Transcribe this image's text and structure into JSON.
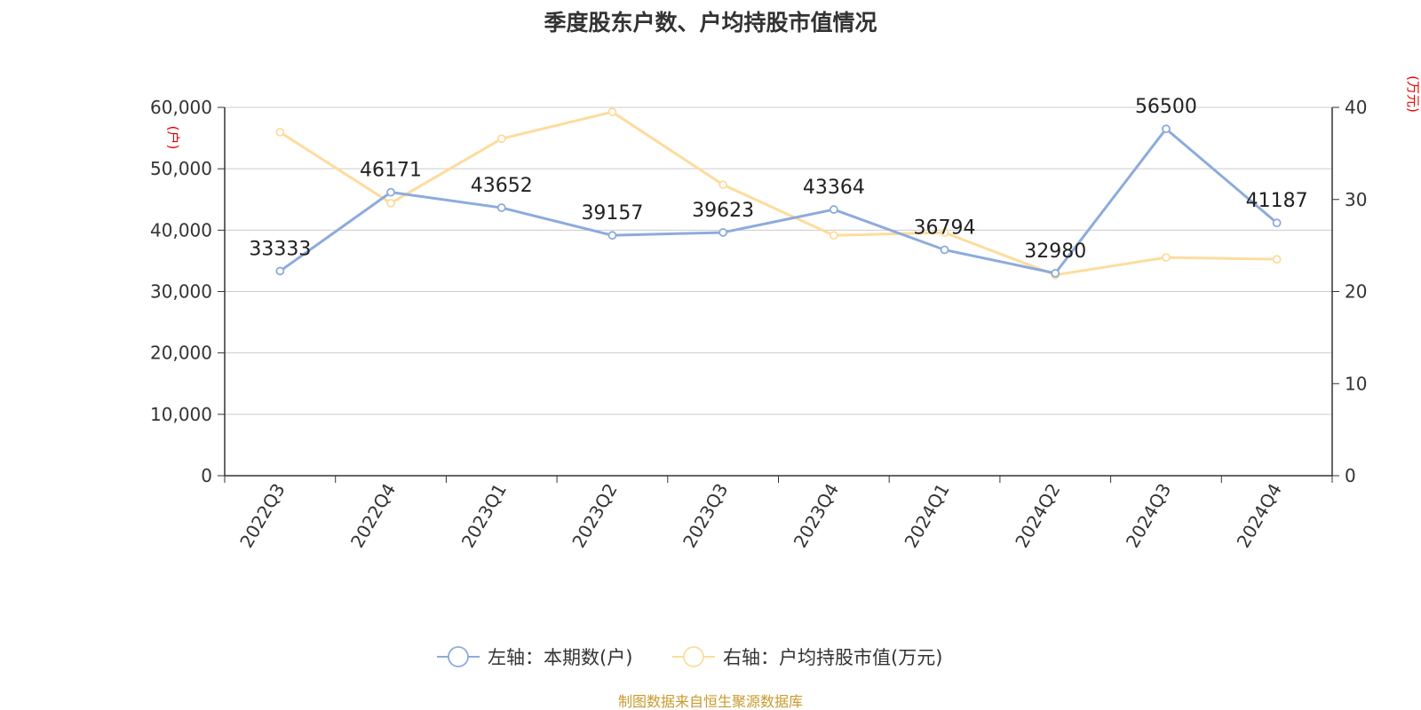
{
  "title": "季度股东户数、户均持股市值情况",
  "source": "制图数据来自恒生聚源数据库",
  "colors": {
    "left_series": "#8dabdc",
    "right_series": "#fddc9c",
    "grid": "#cccccc",
    "axis": "#333333",
    "unit": "#e60000",
    "source": "#c89a2c"
  },
  "chart_data": {
    "type": "line",
    "title": "季度股东户数、户均持股市值情况",
    "categories": [
      "2022Q3",
      "2022Q4",
      "2023Q1",
      "2023Q2",
      "2023Q3",
      "2023Q4",
      "2024Q1",
      "2024Q2",
      "2024Q3",
      "2024Q4"
    ],
    "left_axis": {
      "unit": "(户)",
      "ylim": [
        0,
        60000
      ],
      "ticks": [
        "0",
        "10,000",
        "20,000",
        "30,000",
        "40,000",
        "50,000",
        "60,000"
      ],
      "tick_values": [
        0,
        10000,
        20000,
        30000,
        40000,
        50000,
        60000
      ]
    },
    "right_axis": {
      "unit": "(万元)",
      "ylim": [
        0,
        40
      ],
      "ticks": [
        "0",
        "10",
        "20",
        "30",
        "40"
      ],
      "tick_values": [
        0,
        10,
        20,
        30,
        40
      ]
    },
    "series": [
      {
        "name": "左轴：本期数(户)",
        "axis": "left",
        "color": "#8dabdc",
        "values": [
          33333,
          46171,
          43652,
          39157,
          39623,
          43364,
          36794,
          32980,
          56500,
          41187
        ],
        "labels": [
          "33333",
          "46171",
          "43652",
          "39157",
          "39623",
          "43364",
          "36794",
          "32980",
          "56500",
          "41187"
        ]
      },
      {
        "name": "右轴：户均持股市值(万元)",
        "axis": "right",
        "color": "#fddc9c",
        "values": [
          37.3,
          29.6,
          36.6,
          39.5,
          31.6,
          26.1,
          26.4,
          21.8,
          23.7,
          23.5
        ]
      }
    ],
    "grid": true,
    "legend": "bottom-center"
  }
}
